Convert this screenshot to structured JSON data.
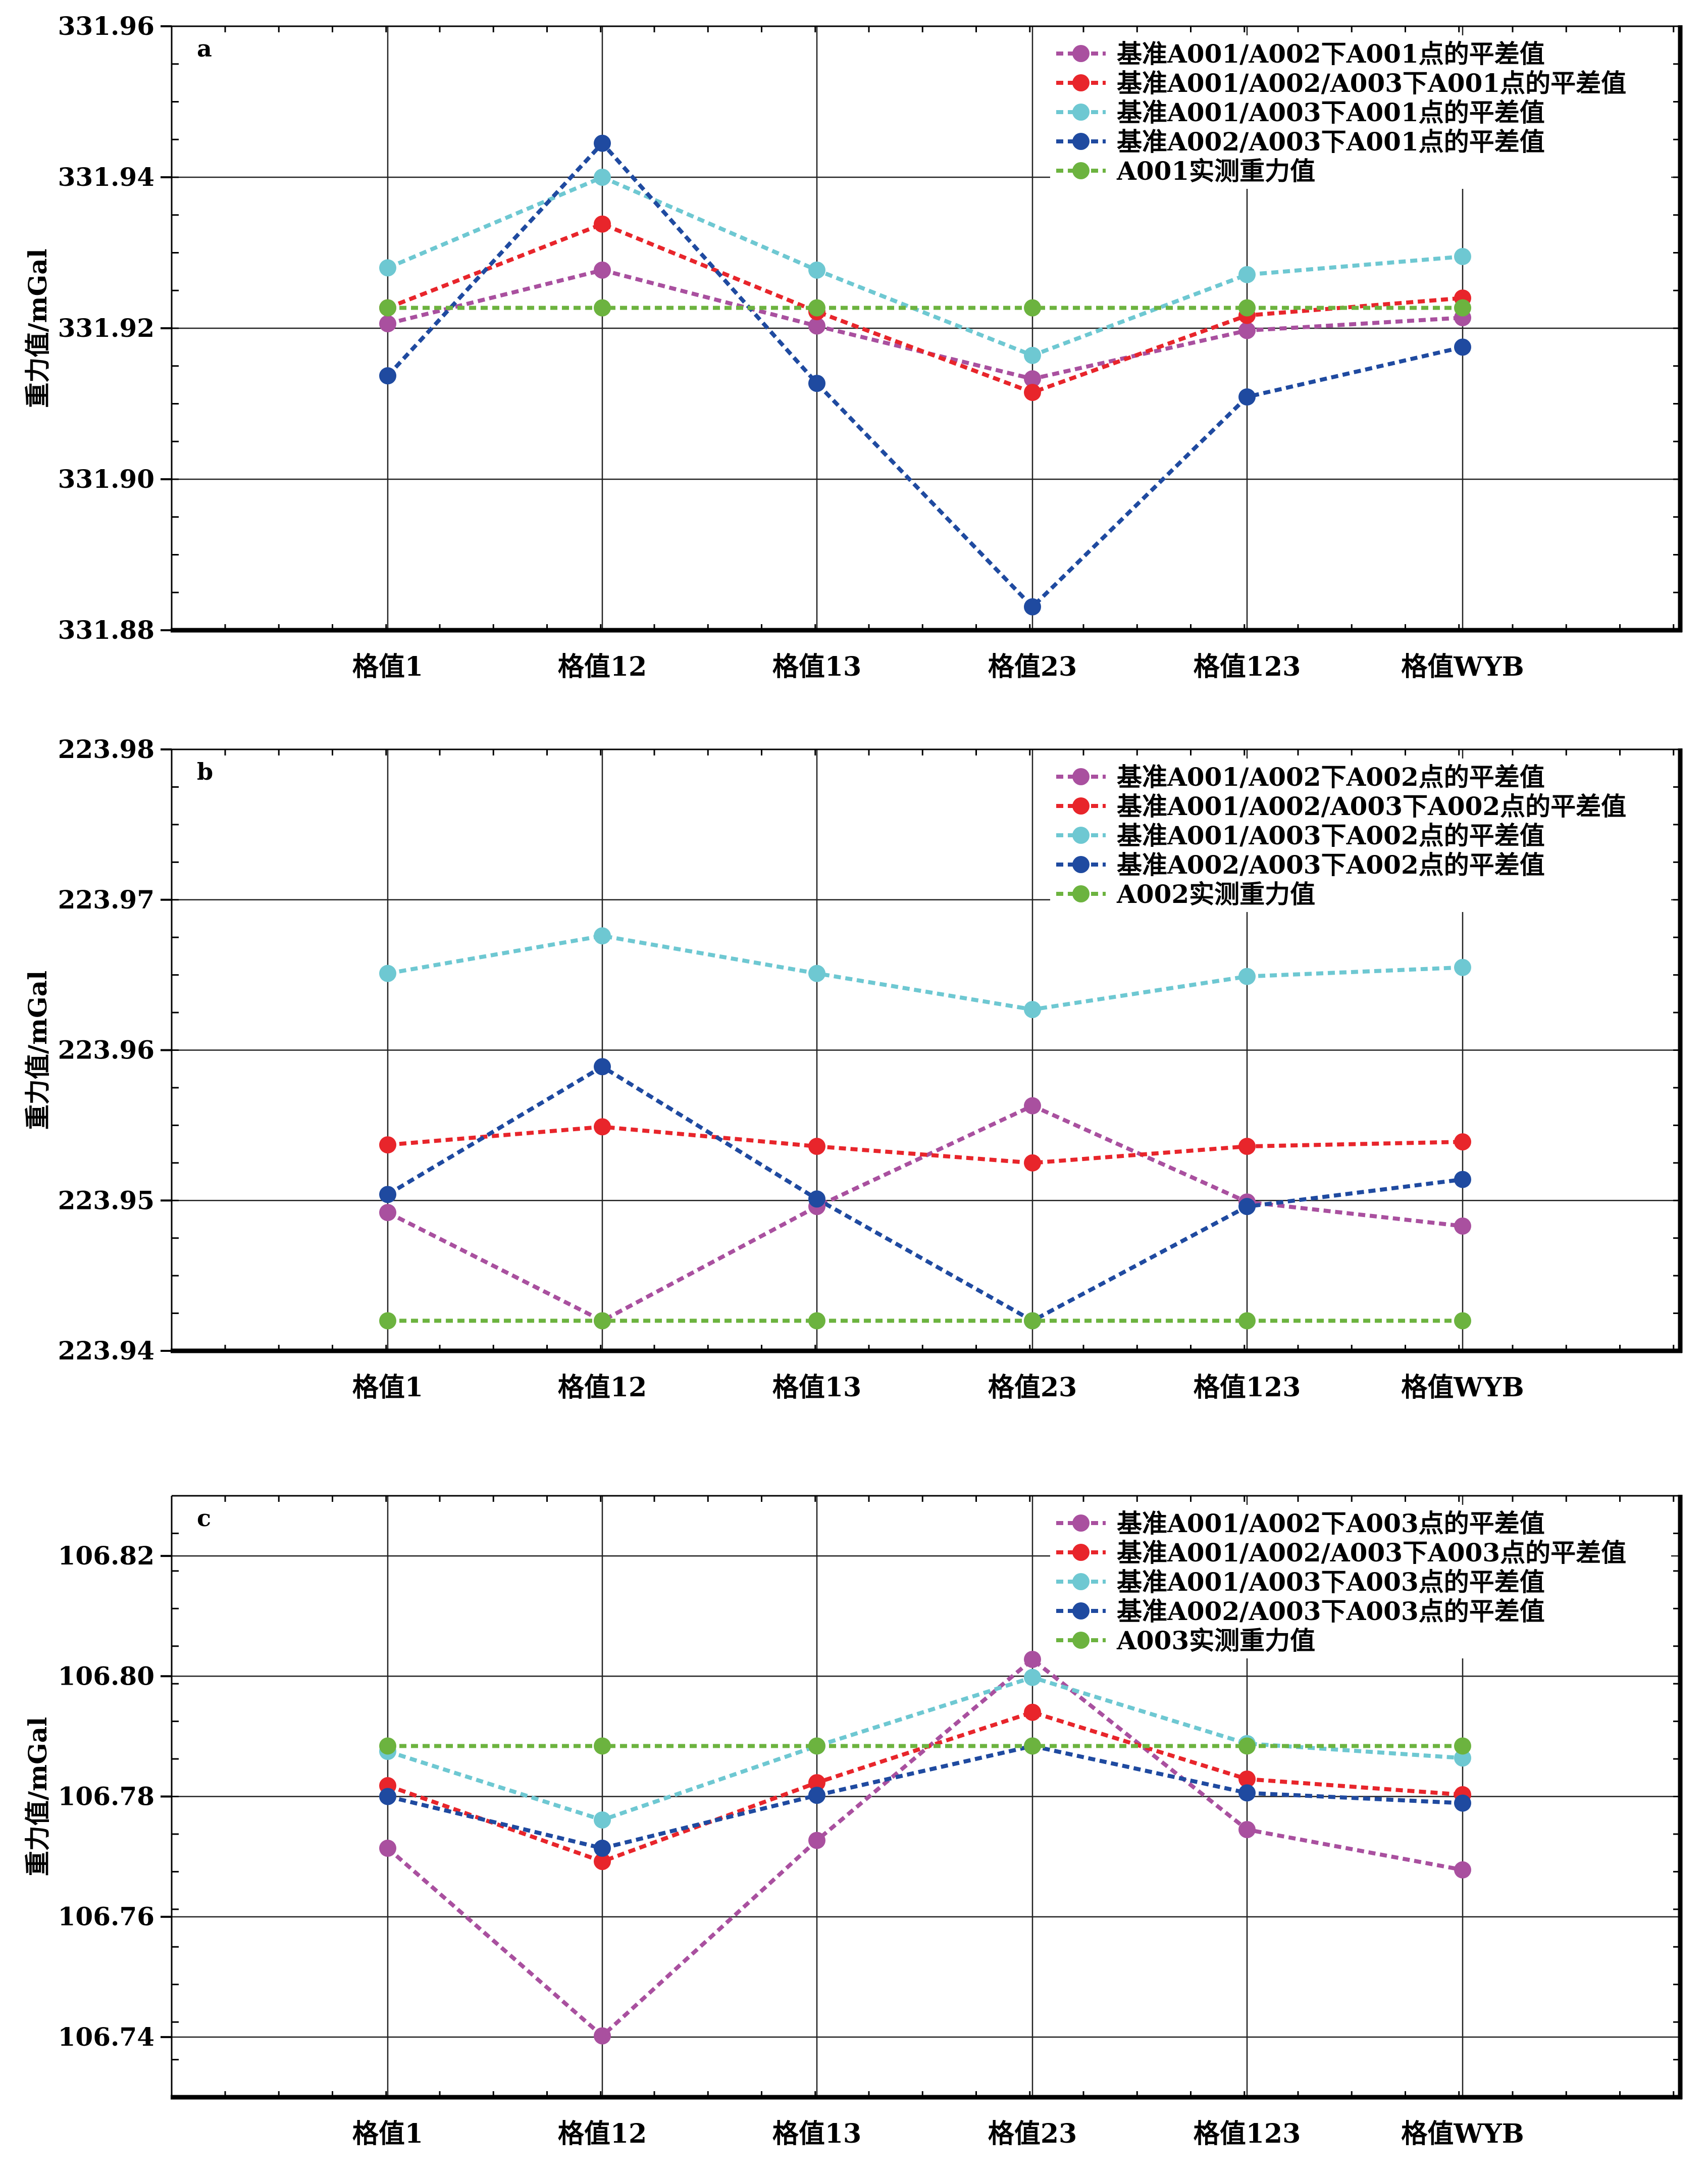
{
  "chart_data": [
    {
      "type": "line",
      "panel_label": "a",
      "ylabel": "重力值/mGal",
      "ylim": [
        331.88,
        331.96
      ],
      "yticks": [
        "331.88",
        "331.90",
        "331.92",
        "331.94",
        "331.96"
      ],
      "categories": [
        "格值1",
        "格值12",
        "格值13",
        "格值23",
        "格值123",
        "格值WYB"
      ],
      "grid": true,
      "legend_position": "top-right",
      "series": [
        {
          "name": "基准A001/A002下A001点的平差值",
          "color": "#a9509f",
          "values": [
            331.9206,
            331.9277,
            331.9203,
            331.9133,
            331.9197,
            331.9214
          ]
        },
        {
          "name": "基准A001/A002/A003下A001点的平差值",
          "color": "#e8252b",
          "values": [
            331.9227,
            331.9338,
            331.9222,
            331.9115,
            331.9217,
            331.924
          ]
        },
        {
          "name": "基准A001/A003下A001点的平差值",
          "color": "#6ec8d2",
          "values": [
            331.928,
            331.94,
            331.9277,
            331.9164,
            331.9271,
            331.9295
          ]
        },
        {
          "name": "基准A002/A003下A001点的平差值",
          "color": "#1f4aa0",
          "values": [
            331.9137,
            331.9445,
            331.9127,
            331.8831,
            331.9109,
            331.9175
          ]
        },
        {
          "name": "A001实测重力值",
          "color": "#6cb33f",
          "values": [
            331.9227,
            331.9227,
            331.9227,
            331.9227,
            331.9227,
            331.9227
          ]
        }
      ]
    },
    {
      "type": "line",
      "panel_label": "b",
      "ylabel": "重力值/mGal",
      "ylim": [
        223.94,
        223.98
      ],
      "yticks": [
        "223.94",
        "223.95",
        "223.96",
        "223.97",
        "223.98"
      ],
      "categories": [
        "格值1",
        "格值12",
        "格值13",
        "格值23",
        "格值123",
        "格值WYB"
      ],
      "grid": true,
      "legend_position": "top-right",
      "series": [
        {
          "name": "基准A001/A002下A002点的平差值",
          "color": "#a9509f",
          "values": [
            223.9492,
            223.942,
            223.9496,
            223.9563,
            223.9499,
            223.9483
          ]
        },
        {
          "name": "基准A001/A002/A003下A002点的平差值",
          "color": "#e8252b",
          "values": [
            223.9537,
            223.9549,
            223.9536,
            223.9525,
            223.9536,
            223.9539
          ]
        },
        {
          "name": "基准A001/A003下A002点的平差值",
          "color": "#6ec8d2",
          "values": [
            223.9651,
            223.9676,
            223.9651,
            223.9627,
            223.9649,
            223.9655
          ]
        },
        {
          "name": "基准A002/A003下A002点的平差值",
          "color": "#1f4aa0",
          "values": [
            223.9504,
            223.9589,
            223.9501,
            223.942,
            223.9496,
            223.9514
          ]
        },
        {
          "name": "A002实测重力值",
          "color": "#6cb33f",
          "values": [
            223.942,
            223.942,
            223.942,
            223.942,
            223.942,
            223.942
          ]
        }
      ]
    },
    {
      "type": "line",
      "panel_label": "c",
      "ylabel": "重力值/mGal",
      "ylim": [
        106.73,
        106.83
      ],
      "yticks": [
        "106.74",
        "106.76",
        "106.78",
        "106.80",
        "106.82"
      ],
      "categories": [
        "格值1",
        "格值12",
        "格值13",
        "格值23",
        "格值123",
        "格值WYB"
      ],
      "grid": true,
      "legend_position": "top-right",
      "series": [
        {
          "name": "基准A001/A002下A003点的平差值",
          "color": "#a9509f",
          "values": [
            106.7714,
            106.7402,
            106.7727,
            106.8028,
            106.7745,
            106.7678
          ]
        },
        {
          "name": "基准A001/A002/A003下A003点的平差值",
          "color": "#e8252b",
          "values": [
            106.7818,
            106.7692,
            106.7823,
            106.794,
            106.7829,
            106.7803
          ]
        },
        {
          "name": "基准A001/A003下A003点的平差值",
          "color": "#6ec8d2",
          "values": [
            106.7875,
            106.7761,
            106.7884,
            106.7998,
            106.7888,
            106.7864
          ]
        },
        {
          "name": "基准A002/A003下A003点的平差值",
          "color": "#1f4aa0",
          "values": [
            106.78,
            106.7714,
            106.7802,
            106.7884,
            106.7806,
            106.7789
          ]
        },
        {
          "name": "A003实测重力值",
          "color": "#6cb33f",
          "values": [
            106.7884,
            106.7884,
            106.7884,
            106.7884,
            106.7884,
            106.7884
          ]
        }
      ]
    }
  ]
}
